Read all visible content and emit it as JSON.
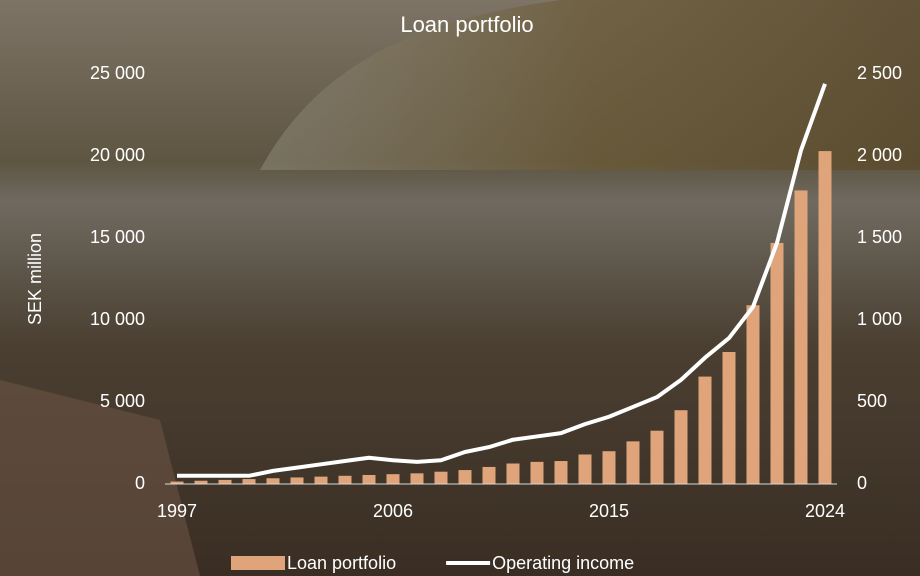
{
  "chart_data": {
    "type": "bar_line",
    "title": "Loan portfolio",
    "y_label": "SEK million",
    "categories": [
      "1997",
      null,
      null,
      null,
      null,
      null,
      null,
      null,
      null,
      "2006",
      null,
      null,
      null,
      null,
      null,
      null,
      null,
      null,
      "2015",
      null,
      null,
      null,
      null,
      null,
      null,
      null,
      null,
      "2024"
    ],
    "series": [
      {
        "name": "Loan portfolio",
        "type": "bar",
        "color": "#e0a47a",
        "values": [
          150,
          200,
          250,
          300,
          350,
          400,
          450,
          500,
          550,
          600,
          650,
          750,
          850,
          1040,
          1250,
          1350,
          1400,
          1800,
          2000,
          2600,
          3250,
          4500,
          6550,
          8050,
          10900,
          14700,
          17900,
          20300
        ]
      },
      {
        "name": "Operating income",
        "type": "line",
        "axis": "y2",
        "color": "#ffffff",
        "values": [
          50,
          50,
          50,
          50,
          80,
          100,
          120,
          140,
          160,
          145,
          135,
          145,
          195,
          225,
          270,
          290,
          310,
          365,
          410,
          470,
          530,
          635,
          770,
          890,
          1080,
          1470,
          2035,
          2440
        ]
      }
    ],
    "ylim": [
      0,
      25000
    ],
    "yticks": [
      0,
      {
        "value": 5000,
        "label": "5 000"
      },
      {
        "value": 10000,
        "label": "10 000"
      },
      {
        "value": 15000,
        "label": "15 000"
      },
      {
        "value": 20000,
        "label": "20 000"
      },
      {
        "value": 25000,
        "label": "25 000"
      }
    ],
    "y2lim": [
      0,
      2500
    ],
    "y2ticks": [
      0,
      500,
      {
        "value": 1000,
        "label": "1 000"
      },
      {
        "value": 1500,
        "label": "1 500"
      },
      {
        "value": 2000,
        "label": "2 000"
      },
      {
        "value": 2500,
        "label": "2 500"
      }
    ],
    "grid": false,
    "legend": "bottom"
  }
}
